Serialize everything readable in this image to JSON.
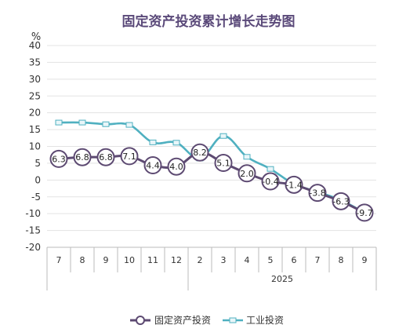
{
  "chart_data": {
    "type": "line",
    "title": "固定资产投资累计增长走势图",
    "unit": "%",
    "ylim": [
      -20,
      40
    ],
    "yticks": [
      40,
      35,
      30,
      25,
      20,
      15,
      10,
      5,
      0,
      -5,
      -10,
      -15,
      -20
    ],
    "grid": true,
    "legend_position": "bottom",
    "categories": [
      "7",
      "8",
      "9",
      "10",
      "11",
      "12",
      "2",
      "3",
      "4",
      "5",
      "6",
      "7",
      "8",
      "9"
    ],
    "year_group": {
      "label": "2025",
      "start_index": 6,
      "end_index": 13
    },
    "series": [
      {
        "name": "固定资产投资",
        "color": "#5d4a72",
        "marker": "circle",
        "values": [
          6.3,
          6.8,
          6.8,
          7.1,
          4.4,
          4.0,
          8.2,
          5.1,
          2.0,
          -0.4,
          -1.4,
          -3.8,
          -6.3,
          -9.7
        ],
        "labels": [
          "6.3",
          "6.8",
          "6.8",
          "7.1",
          "4.4",
          "4.0",
          "8.2",
          "5.1",
          "2.0",
          "-0.4",
          "-1.4",
          "-3.8",
          "-6.3",
          "-9.7"
        ]
      },
      {
        "name": "工业投资",
        "color": "#4fb0c0",
        "marker": "square",
        "values": [
          17.1,
          17.1,
          16.6,
          16.4,
          11.2,
          11.1,
          6.4,
          13.1,
          6.9,
          3.3,
          -1.2,
          -3.5,
          -6.0,
          -9.7
        ]
      }
    ]
  }
}
